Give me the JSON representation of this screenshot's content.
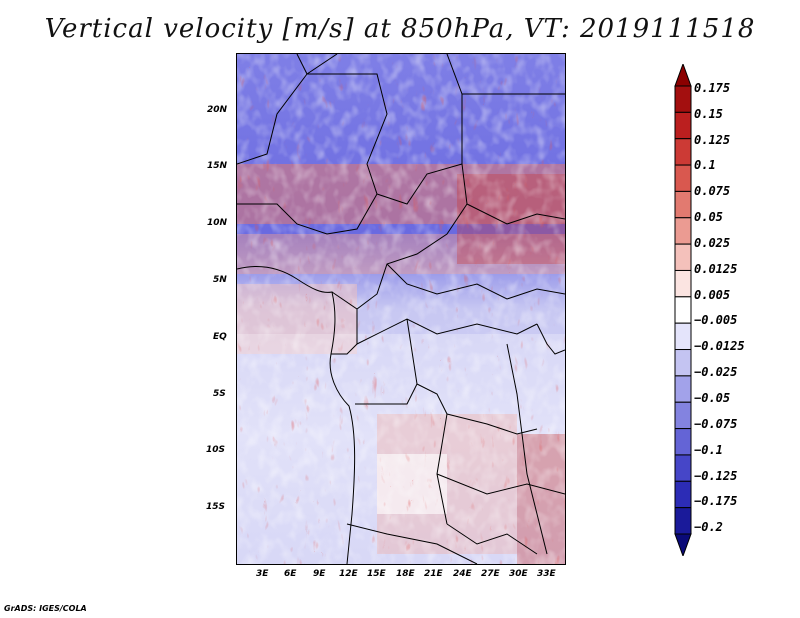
{
  "title": "Vertical velocity [m/s] at 850hPa, VT: 2019111518",
  "y_ticks": [
    "20N",
    "15N",
    "10N",
    "5N",
    "EQ",
    "5S",
    "10S",
    "15S"
  ],
  "x_ticks": [
    "3E",
    "6E",
    "9E",
    "12E",
    "15E",
    "18E",
    "21E",
    "24E",
    "27E",
    "30E",
    "33E"
  ],
  "colorbar": {
    "labels": [
      "0.175",
      "0.15",
      "0.125",
      "0.1",
      "0.075",
      "0.05",
      "0.025",
      "0.0125",
      "0.005",
      "−0.005",
      "−0.0125",
      "−0.025",
      "−0.05",
      "−0.075",
      "−0.1",
      "−0.125",
      "−0.175",
      "−0.2"
    ],
    "colors": [
      "#8b0000",
      "#a30f0f",
      "#bb1f1f",
      "#cc3a35",
      "#d9584f",
      "#e27a70",
      "#eb9b92",
      "#f4c1bb",
      "#fbe4e1",
      "#ffffff",
      "#e4e4fb",
      "#c4c4f2",
      "#a2a2ea",
      "#8383e0",
      "#6464d6",
      "#4646c8",
      "#2c2cb6",
      "#1a1a9a",
      "#0a0a78"
    ]
  },
  "footer": "GrADS: IGES/COLA"
}
